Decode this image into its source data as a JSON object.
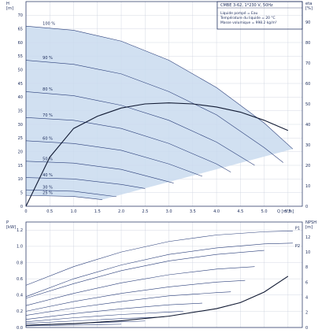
{
  "chart_data": [
    {
      "type": "line",
      "panel": "head",
      "title": "CMBE 3-62, 1*230 V, 50Hz",
      "ylabel": "H",
      "yunit": "[m]",
      "y2label": "eta",
      "y2unit": "[%]",
      "xlabel": "Q",
      "xunit": "[m³/h]",
      "annotations": [
        "Liquide pompé = Eau",
        "Température du liquide = 20 °C",
        "Masse volumique = 998.2 kg/m³"
      ],
      "xlim": [
        0,
        5.8
      ],
      "ylim": [
        0,
        75
      ],
      "y2lim": [
        0,
        100
      ],
      "grid": true,
      "shaded_operating_area_color": "#c9dbee",
      "xticks": [
        "0",
        "0.5",
        "1.0",
        "1.5",
        "2.0",
        "2.5",
        "3.0",
        "3.5",
        "4.0",
        "4.5",
        "5.0",
        "5.5"
      ],
      "yticks": [
        "0",
        "5",
        "10",
        "15",
        "20",
        "25",
        "30",
        "35",
        "40",
        "45",
        "50",
        "55",
        "60",
        "65",
        "70"
      ],
      "y2ticks": [
        "0",
        "10",
        "20",
        "30",
        "40",
        "50",
        "60",
        "70",
        "80",
        "90"
      ],
      "series": [
        {
          "name": "100 %",
          "x": [
            0,
            1.0,
            2.0,
            3.0,
            4.0,
            5.0,
            5.6
          ],
          "y": [
            66,
            64.5,
            60.5,
            53.5,
            43.5,
            30.5,
            21
          ]
        },
        {
          "name": "90 %",
          "x": [
            0,
            1.0,
            2.0,
            3.0,
            4.0,
            5.0,
            5.4
          ],
          "y": [
            53.5,
            52,
            48.5,
            42,
            33.5,
            21.5,
            16
          ]
        },
        {
          "name": "80 %",
          "x": [
            0,
            1.0,
            2.0,
            3.0,
            4.0,
            4.8
          ],
          "y": [
            42,
            40.5,
            37,
            31.5,
            23.5,
            15
          ]
        },
        {
          "name": "70 %",
          "x": [
            0,
            1.0,
            2.0,
            3.0,
            4.0,
            4.3
          ],
          "y": [
            32.5,
            31.5,
            28.5,
            23,
            15.5,
            12.5
          ]
        },
        {
          "name": "60 %",
          "x": [
            0,
            1.0,
            2.0,
            3.0,
            3.7
          ],
          "y": [
            24,
            23,
            20.5,
            15.5,
            11
          ]
        },
        {
          "name": "50 %",
          "x": [
            0,
            1.0,
            2.0,
            3.1
          ],
          "y": [
            16.5,
            15.8,
            13.5,
            8.5
          ]
        },
        {
          "name": "40 %",
          "x": [
            0,
            1.0,
            2.0,
            2.5
          ],
          "y": [
            10.5,
            10,
            8,
            6.5
          ]
        },
        {
          "name": "30 %",
          "x": [
            0,
            1.0,
            1.9
          ],
          "y": [
            6,
            5.5,
            3.5
          ]
        },
        {
          "name": "25 %",
          "x": [
            0,
            1.0,
            1.6
          ],
          "y": [
            4,
            3.6,
            2.4
          ]
        }
      ],
      "efficiency": {
        "x": [
          0,
          0.5,
          1.0,
          1.5,
          2.0,
          2.5,
          3.0,
          3.5,
          4.0,
          4.5,
          5.0,
          5.5
        ],
        "y": [
          0,
          24,
          38,
          44,
          48,
          50,
          50.5,
          50,
          48.5,
          46,
          42,
          37
        ]
      }
    },
    {
      "type": "line",
      "panel": "power",
      "ylabel": "P",
      "yunit": "[kW]",
      "y2label": "NPSH",
      "y2unit": "[m]",
      "xlim": [
        0,
        5.8
      ],
      "ylim": [
        0,
        1.3
      ],
      "y2lim": [
        0,
        14
      ],
      "grid": true,
      "yticks": [
        "0.0",
        "0.2",
        "0.4",
        "0.6",
        "0.8",
        "1.0",
        "1.2"
      ],
      "y2ticks": [
        "0",
        "2",
        "4",
        "6",
        "8",
        "10",
        "12"
      ],
      "series": [
        {
          "name": "P1",
          "x": [
            0,
            1.0,
            2.0,
            3.0,
            4.0,
            5.0,
            5.6
          ],
          "y": [
            0.52,
            0.75,
            0.93,
            1.06,
            1.14,
            1.18,
            1.19
          ]
        },
        {
          "name": "P2",
          "x": [
            0,
            1.0,
            2.0,
            3.0,
            4.0,
            5.0,
            5.6
          ],
          "y": [
            0.38,
            0.6,
            0.77,
            0.9,
            0.98,
            1.03,
            1.04
          ]
        },
        {
          "name": "",
          "x": [
            0,
            1.0,
            2.0,
            3.0,
            4.0,
            5.0
          ],
          "y": [
            0.36,
            0.54,
            0.7,
            0.82,
            0.9,
            0.95
          ]
        },
        {
          "name": "",
          "x": [
            0,
            1.0,
            2.0,
            3.0,
            4.0,
            4.8
          ],
          "y": [
            0.27,
            0.42,
            0.55,
            0.65,
            0.72,
            0.75
          ]
        },
        {
          "name": "",
          "x": [
            0,
            1.0,
            2.0,
            3.0,
            4.0,
            4.6
          ],
          "y": [
            0.2,
            0.32,
            0.42,
            0.5,
            0.56,
            0.58
          ]
        },
        {
          "name": "",
          "x": [
            0,
            1.0,
            2.0,
            3.0,
            4.0,
            4.3
          ],
          "y": [
            0.15,
            0.24,
            0.32,
            0.39,
            0.43,
            0.44
          ]
        },
        {
          "name": "",
          "x": [
            0,
            1.0,
            2.0,
            3.0,
            3.7
          ],
          "y": [
            0.1,
            0.17,
            0.23,
            0.28,
            0.3
          ]
        },
        {
          "name": "",
          "x": [
            0,
            1.0,
            2.0,
            3.0,
            3.3
          ],
          "y": [
            0.07,
            0.12,
            0.16,
            0.19,
            0.2
          ]
        },
        {
          "name": "",
          "x": [
            0,
            1.0,
            2.0,
            2.9
          ],
          "y": [
            0.05,
            0.08,
            0.11,
            0.13
          ]
        },
        {
          "name": "",
          "x": [
            0,
            1.0,
            2.0,
            2.5
          ],
          "y": [
            0.03,
            0.05,
            0.07,
            0.08
          ]
        },
        {
          "name": "",
          "x": [
            0,
            1.0,
            2.0
          ],
          "y": [
            0.02,
            0.03,
            0.04
          ]
        }
      ],
      "npsh": {
        "x": [
          0,
          1.0,
          2.0,
          3.0,
          4.0,
          4.5,
          5.0,
          5.5
        ],
        "y": [
          0.3,
          0.5,
          0.9,
          1.5,
          2.5,
          3.3,
          4.7,
          6.8
        ]
      }
    }
  ]
}
